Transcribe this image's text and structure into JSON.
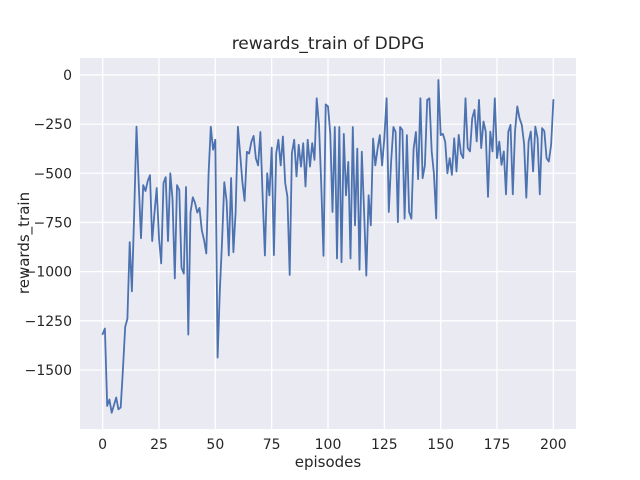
{
  "figure": {
    "title": "rewards_train of DDPG",
    "xlabel": "episodes",
    "ylabel": "rewards_train"
  },
  "chart_data": {
    "type": "line",
    "title": "rewards_train of DDPG",
    "xlabel": "episodes",
    "ylabel": "rewards_train",
    "grid": true,
    "legend": null,
    "background_color": "#eaeaf2",
    "gridline_color": "#ffffff",
    "line_color": "#4c72b0",
    "text_color": "#262626",
    "xlim": [
      -10.05,
      210.05
    ],
    "ylim": [
      -1800,
      86
    ],
    "x_tick_values": [
      0,
      25,
      50,
      75,
      100,
      125,
      150,
      175,
      200
    ],
    "x_tick_labels": [
      "0",
      "25",
      "50",
      "75",
      "100",
      "125",
      "150",
      "175",
      "200"
    ],
    "y_tick_values": [
      0,
      -250,
      -500,
      -750,
      -1000,
      -1250,
      -1500
    ],
    "y_tick_labels": [
      "0",
      "−250",
      "−500",
      "−750",
      "−1000",
      "−1250",
      "−1500"
    ],
    "series": [
      {
        "name": "rewards_train",
        "x_start": 0,
        "x_step": 1,
        "values": [
          -1318,
          -1289,
          -1683,
          -1650,
          -1717,
          -1680,
          -1640,
          -1700,
          -1690,
          -1500,
          -1280,
          -1240,
          -850,
          -1100,
          -700,
          -263,
          -550,
          -830,
          -560,
          -590,
          -540,
          -510,
          -845,
          -700,
          -575,
          -830,
          -958,
          -550,
          -520,
          -845,
          -500,
          -630,
          -1035,
          -560,
          -585,
          -980,
          -1010,
          -570,
          -1320,
          -700,
          -622,
          -650,
          -700,
          -676,
          -790,
          -840,
          -908,
          -500,
          -264,
          -380,
          -330,
          -1437,
          -1100,
          -840,
          -545,
          -640,
          -918,
          -524,
          -901,
          -700,
          -264,
          -400,
          -545,
          -640,
          -391,
          -400,
          -340,
          -310,
          -425,
          -460,
          -290,
          -612,
          -918,
          -500,
          -612,
          -370,
          -916,
          -400,
          -330,
          -460,
          -313,
          -550,
          -618,
          -1017,
          -398,
          -330,
          -516,
          -355,
          -466,
          -347,
          -567,
          -330,
          -466,
          -347,
          -432,
          -119,
          -255,
          -550,
          -920,
          -150,
          -160,
          -300,
          -697,
          -265,
          -933,
          -265,
          -952,
          -300,
          -612,
          -442,
          -933,
          -265,
          -765,
          -375,
          -990,
          -390,
          -697,
          -1020,
          -612,
          -765,
          -323,
          -460,
          -375,
          -306,
          -460,
          -323,
          -119,
          -697,
          -442,
          -265,
          -290,
          -748,
          -265,
          -280,
          -731,
          -306,
          -697,
          -731,
          -375,
          -290,
          -530,
          -119,
          -525,
          -460,
          -127,
          -119,
          -390,
          -500,
          -730,
          -26,
          -306,
          -300,
          -340,
          -500,
          -423,
          -508,
          -322,
          -491,
          -305,
          -400,
          -423,
          -119,
          -372,
          -389,
          -221,
          -178,
          -338,
          -127,
          -372,
          -237,
          -288,
          -620,
          -288,
          -389,
          -119,
          -423,
          -339,
          -457,
          -389,
          -607,
          -288,
          -254,
          -607,
          -288,
          -160,
          -220,
          -254,
          -350,
          -624,
          -339,
          -288,
          -491,
          -262,
          -322,
          -607,
          -271,
          -285,
          -424,
          -440,
          -356,
          -127
        ]
      }
    ]
  }
}
